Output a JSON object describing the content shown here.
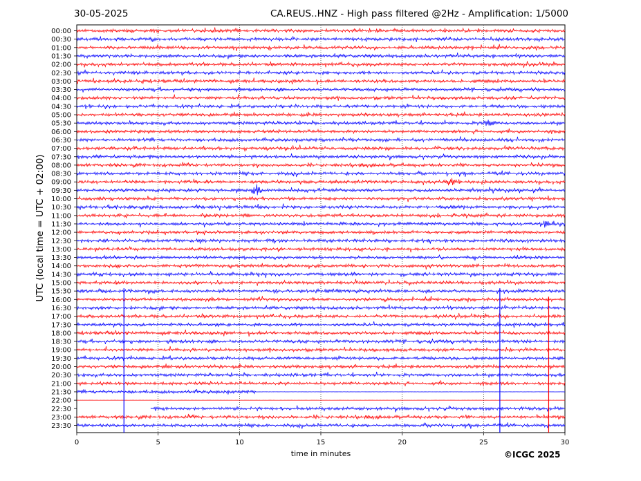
{
  "header": {
    "date": "30-05-2025",
    "station_info": "CA.REUS..HNZ - High pass filtered @2Hz - Amplification: 1/5000"
  },
  "credit": "©ICGC 2025",
  "colors": {
    "odd_row": "#ff0000",
    "even_row": "#0000ff",
    "grid": "#000000"
  },
  "chart_data": {
    "type": "line",
    "title": "CA.REUS..HNZ - High pass filtered @2Hz - Amplification: 1/5000",
    "xlabel": "time in minutes",
    "ylabel": "UTC (local time = UTC + 02:00)",
    "xlim": [
      0,
      30
    ],
    "x_ticks": [
      "0",
      "5",
      "10",
      "15",
      "20",
      "25",
      "30"
    ],
    "grid": "vertical dotted lines every 5 minutes",
    "rows": [
      "00:00",
      "00:30",
      "01:00",
      "01:30",
      "02:00",
      "02:30",
      "03:00",
      "03:30",
      "04:00",
      "04:30",
      "05:00",
      "05:30",
      "06:00",
      "06:30",
      "07:00",
      "07:30",
      "08:00",
      "08:30",
      "09:00",
      "09:30",
      "10:00",
      "10:30",
      "11:00",
      "11:30",
      "12:00",
      "12:30",
      "13:00",
      "13:30",
      "14:00",
      "14:30",
      "15:00",
      "15:30",
      "16:00",
      "16:30",
      "17:00",
      "17:30",
      "18:00",
      "18:30",
      "19:00",
      "19:30",
      "20:00",
      "20:30",
      "21:00",
      "21:30",
      "22:00",
      "22:30",
      "23:00",
      "23:30"
    ],
    "events": [
      {
        "row": "09:30",
        "minute": 11.0,
        "amplitude": "high",
        "description": "local burst"
      },
      {
        "row": "11:30",
        "minute": 29.0,
        "amplitude": "medium"
      },
      {
        "row": "05:30",
        "minute": 25.3,
        "amplitude": "medium"
      },
      {
        "row": "09:00",
        "minute": 23.0,
        "amplitude": "medium"
      },
      {
        "row": "15:30",
        "minute": 26.0,
        "amplitude": "spike",
        "description": "long vertical spike to 23:30"
      },
      {
        "row": "16:00",
        "minute": 29.0,
        "amplitude": "spike",
        "description": "long vertical spike to 23:30"
      },
      {
        "row": "15:30",
        "minute": 2.9,
        "amplitude": "spike",
        "description": "vertical line to 23:30"
      }
    ],
    "gaps": [
      {
        "row": "21:30",
        "from_minute": 11.0,
        "to_minute": 30.0,
        "note": "flat trace"
      },
      {
        "row": "22:00",
        "from_minute": 0.0,
        "to_minute": 30.0,
        "note": "flat trace"
      },
      {
        "row": "22:30",
        "from_minute": 0.0,
        "to_minute": 4.5,
        "note": "no data"
      }
    ]
  }
}
